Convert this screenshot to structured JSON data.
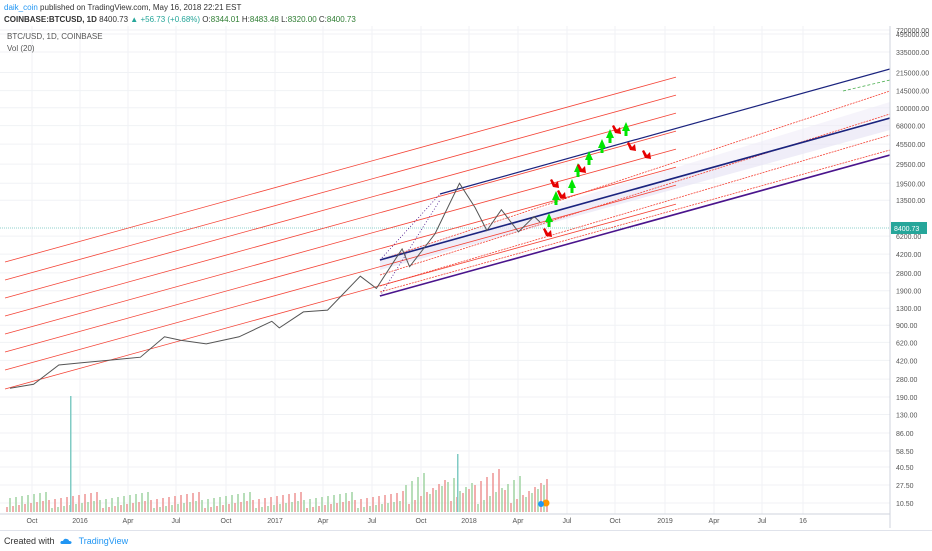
{
  "header": {
    "user": "daik_coin",
    "published": "published on TradingView.com, May 16, 2018 22:21 EST",
    "symbol": "COINBASE:BTCUSD, 1D",
    "last": "8400.73",
    "change": "+56.73 (+0.68%)",
    "open_label": "O:",
    "open": "8344.01",
    "high_label": "H:",
    "high": "8483.48",
    "low_label": "L:",
    "low": "8320.00",
    "close_label": "C:",
    "close": "8400.73"
  },
  "chart_title": "BTC/USD, 1D, COINBASE",
  "volume_label": "Vol (20)",
  "footer": {
    "created_with": "Created with",
    "brand": "TradingView"
  },
  "colors": {
    "channel": "#f44336",
    "upper_channel": "#1a237e",
    "lower_channel": "#4a148c",
    "up_arrow": "#00e600",
    "down_arrow": "#e60000",
    "last_price": "#26a69a"
  },
  "chart_data": {
    "type": "line",
    "scale": "log",
    "x_ticks": [
      "Oct",
      "2016",
      "Apr",
      "Jul",
      "Oct",
      "2017",
      "Apr",
      "Jul",
      "Oct",
      "2018",
      "Apr",
      "Jul",
      "Oct",
      "2019",
      "Apr",
      "Jul",
      "16"
    ],
    "y_ticks": [
      "720000.00",
      "495000.00",
      "335000.00",
      "215000.00",
      "145000.00",
      "100000.00",
      "68000.00",
      "45500.00",
      "29500.00",
      "19500.00",
      "13500.00",
      "8400.73",
      "6200.00",
      "4200.00",
      "2800.00",
      "1900.00",
      "1300.00",
      "900.00",
      "620.00",
      "420.00",
      "280.00",
      "190.00",
      "130.00",
      "86.00",
      "58.50",
      "40.50",
      "27.50",
      "10.50"
    ],
    "last_price": 8400.73,
    "series": [
      {
        "x": [
          "2015-09-01",
          "2015-10-15",
          "2015-12-01",
          "2016-01-15",
          "2016-03-01",
          "2016-05-01",
          "2016-06-15",
          "2016-07-15",
          "2016-09-01",
          "2016-11-01",
          "2017-01-01",
          "2017-01-15",
          "2017-03-01",
          "2017-04-15",
          "2017-06-15",
          "2017-07-15",
          "2017-09-01",
          "2017-09-15",
          "2017-11-01",
          "2017-12-17",
          "2018-01-15",
          "2018-02-06",
          "2018-03-05",
          "2018-04-06",
          "2018-05-05",
          "2018-05-16"
        ],
        "values": [
          230,
          250,
          380,
          400,
          420,
          450,
          700,
          650,
          600,
          700,
          980,
          850,
          1200,
          1250,
          2600,
          2000,
          4700,
          3200,
          6500,
          19500,
          11500,
          7000,
          11000,
          6800,
          9500,
          8400
        ]
      }
    ]
  }
}
